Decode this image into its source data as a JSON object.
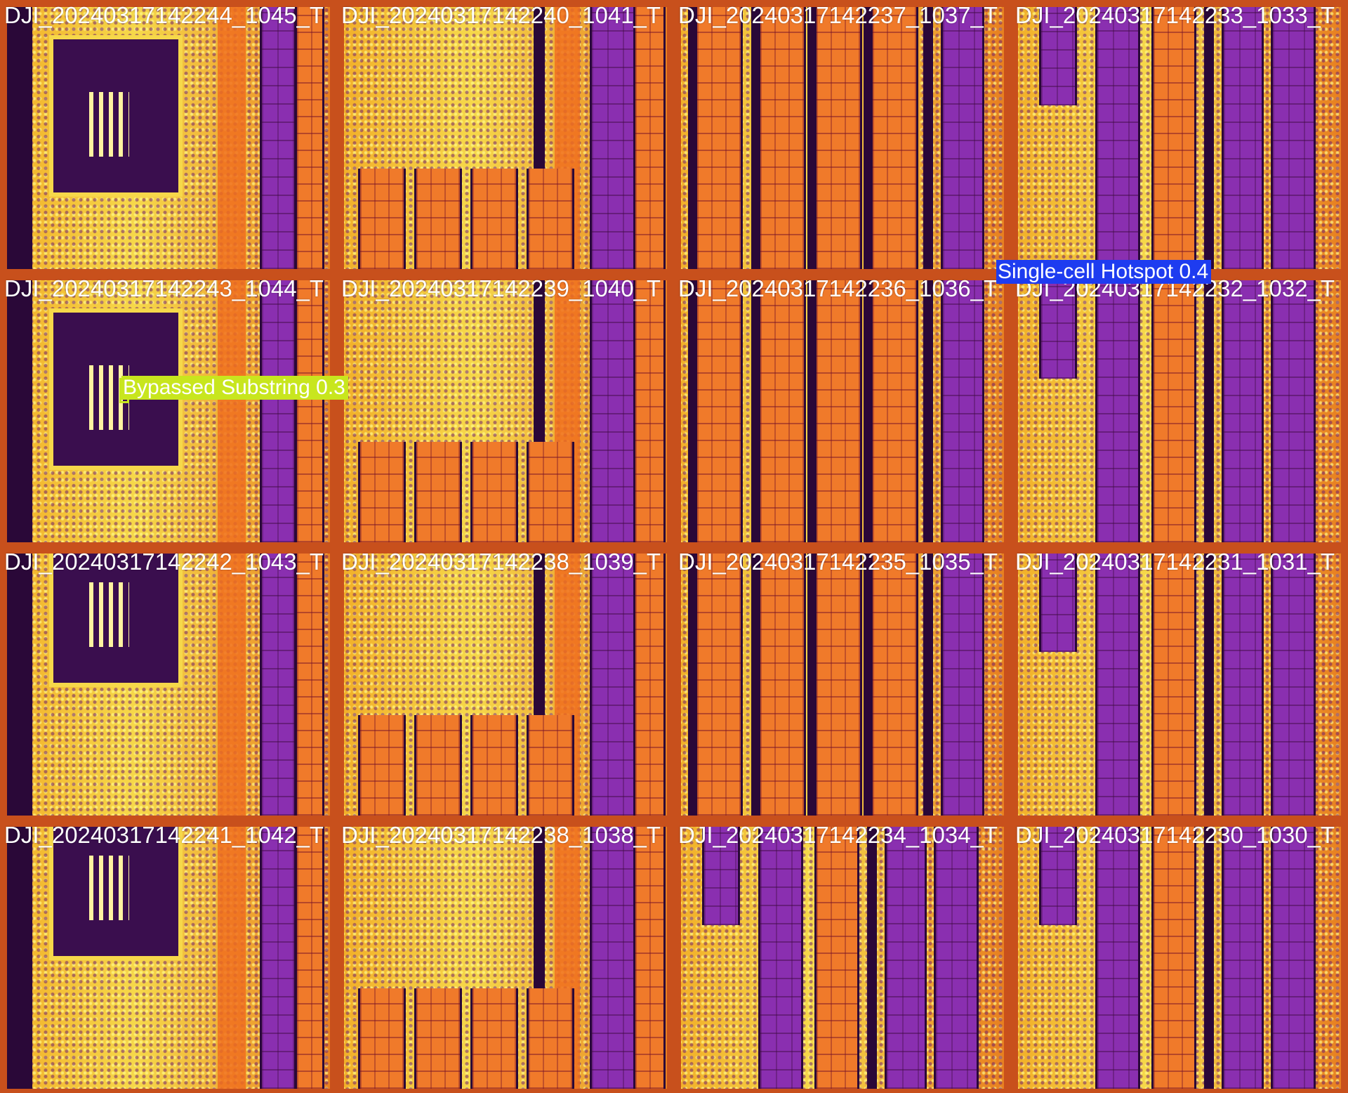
{
  "colors": {
    "bypassed_substring": "#c8e61e",
    "single_cell_hotspot": "#1e3cf0",
    "caption_text": "#ffffff"
  },
  "tiles": [
    {
      "caption": "DJI_20240317142244_1045_T",
      "scene": "substation"
    },
    {
      "caption": "DJI_20240317142240_1041_T",
      "scene": "field-bottom-panels"
    },
    {
      "caption": "DJI_20240317142237_1037_T",
      "scene": "rows"
    },
    {
      "caption": "DJI_20240317142233_1033_T",
      "scene": "rows-left-ground"
    },
    {
      "caption": "DJI_20240317142243_1044_T",
      "scene": "substation"
    },
    {
      "caption": "DJI_20240317142239_1040_T",
      "scene": "field-bottom-panels"
    },
    {
      "caption": "DJI_20240317142236_1036_T",
      "scene": "rows"
    },
    {
      "caption": "DJI_20240317142232_1032_T",
      "scene": "rows-left-ground"
    },
    {
      "caption": "DJI_20240317142242_1043_T",
      "scene": "substation-low"
    },
    {
      "caption": "DJI_20240317142238_1039_T",
      "scene": "field-bottom-panels"
    },
    {
      "caption": "DJI_20240317142235_1035_T",
      "scene": "rows"
    },
    {
      "caption": "DJI_20240317142231_1031_T",
      "scene": "rows-left-ground"
    },
    {
      "caption": "DJI_20240317142241_1042_T",
      "scene": "substation-low"
    },
    {
      "caption": "DJI_20240317142238_1038_T",
      "scene": "field-bottom-panels"
    },
    {
      "caption": "DJI_20240317142234_1034_T",
      "scene": "rows-left-ground"
    },
    {
      "caption": "DJI_20240317142230_1030_T",
      "scene": "rows-left-ground"
    }
  ],
  "detections": [
    {
      "label": "Bypassed Substring 0.3",
      "class": "bypassed_substring",
      "tile_index": 4
    },
    {
      "label": "Single-cell Hotspot 0.4",
      "class": "single_cell_hotspot",
      "tile_index": 7
    }
  ]
}
